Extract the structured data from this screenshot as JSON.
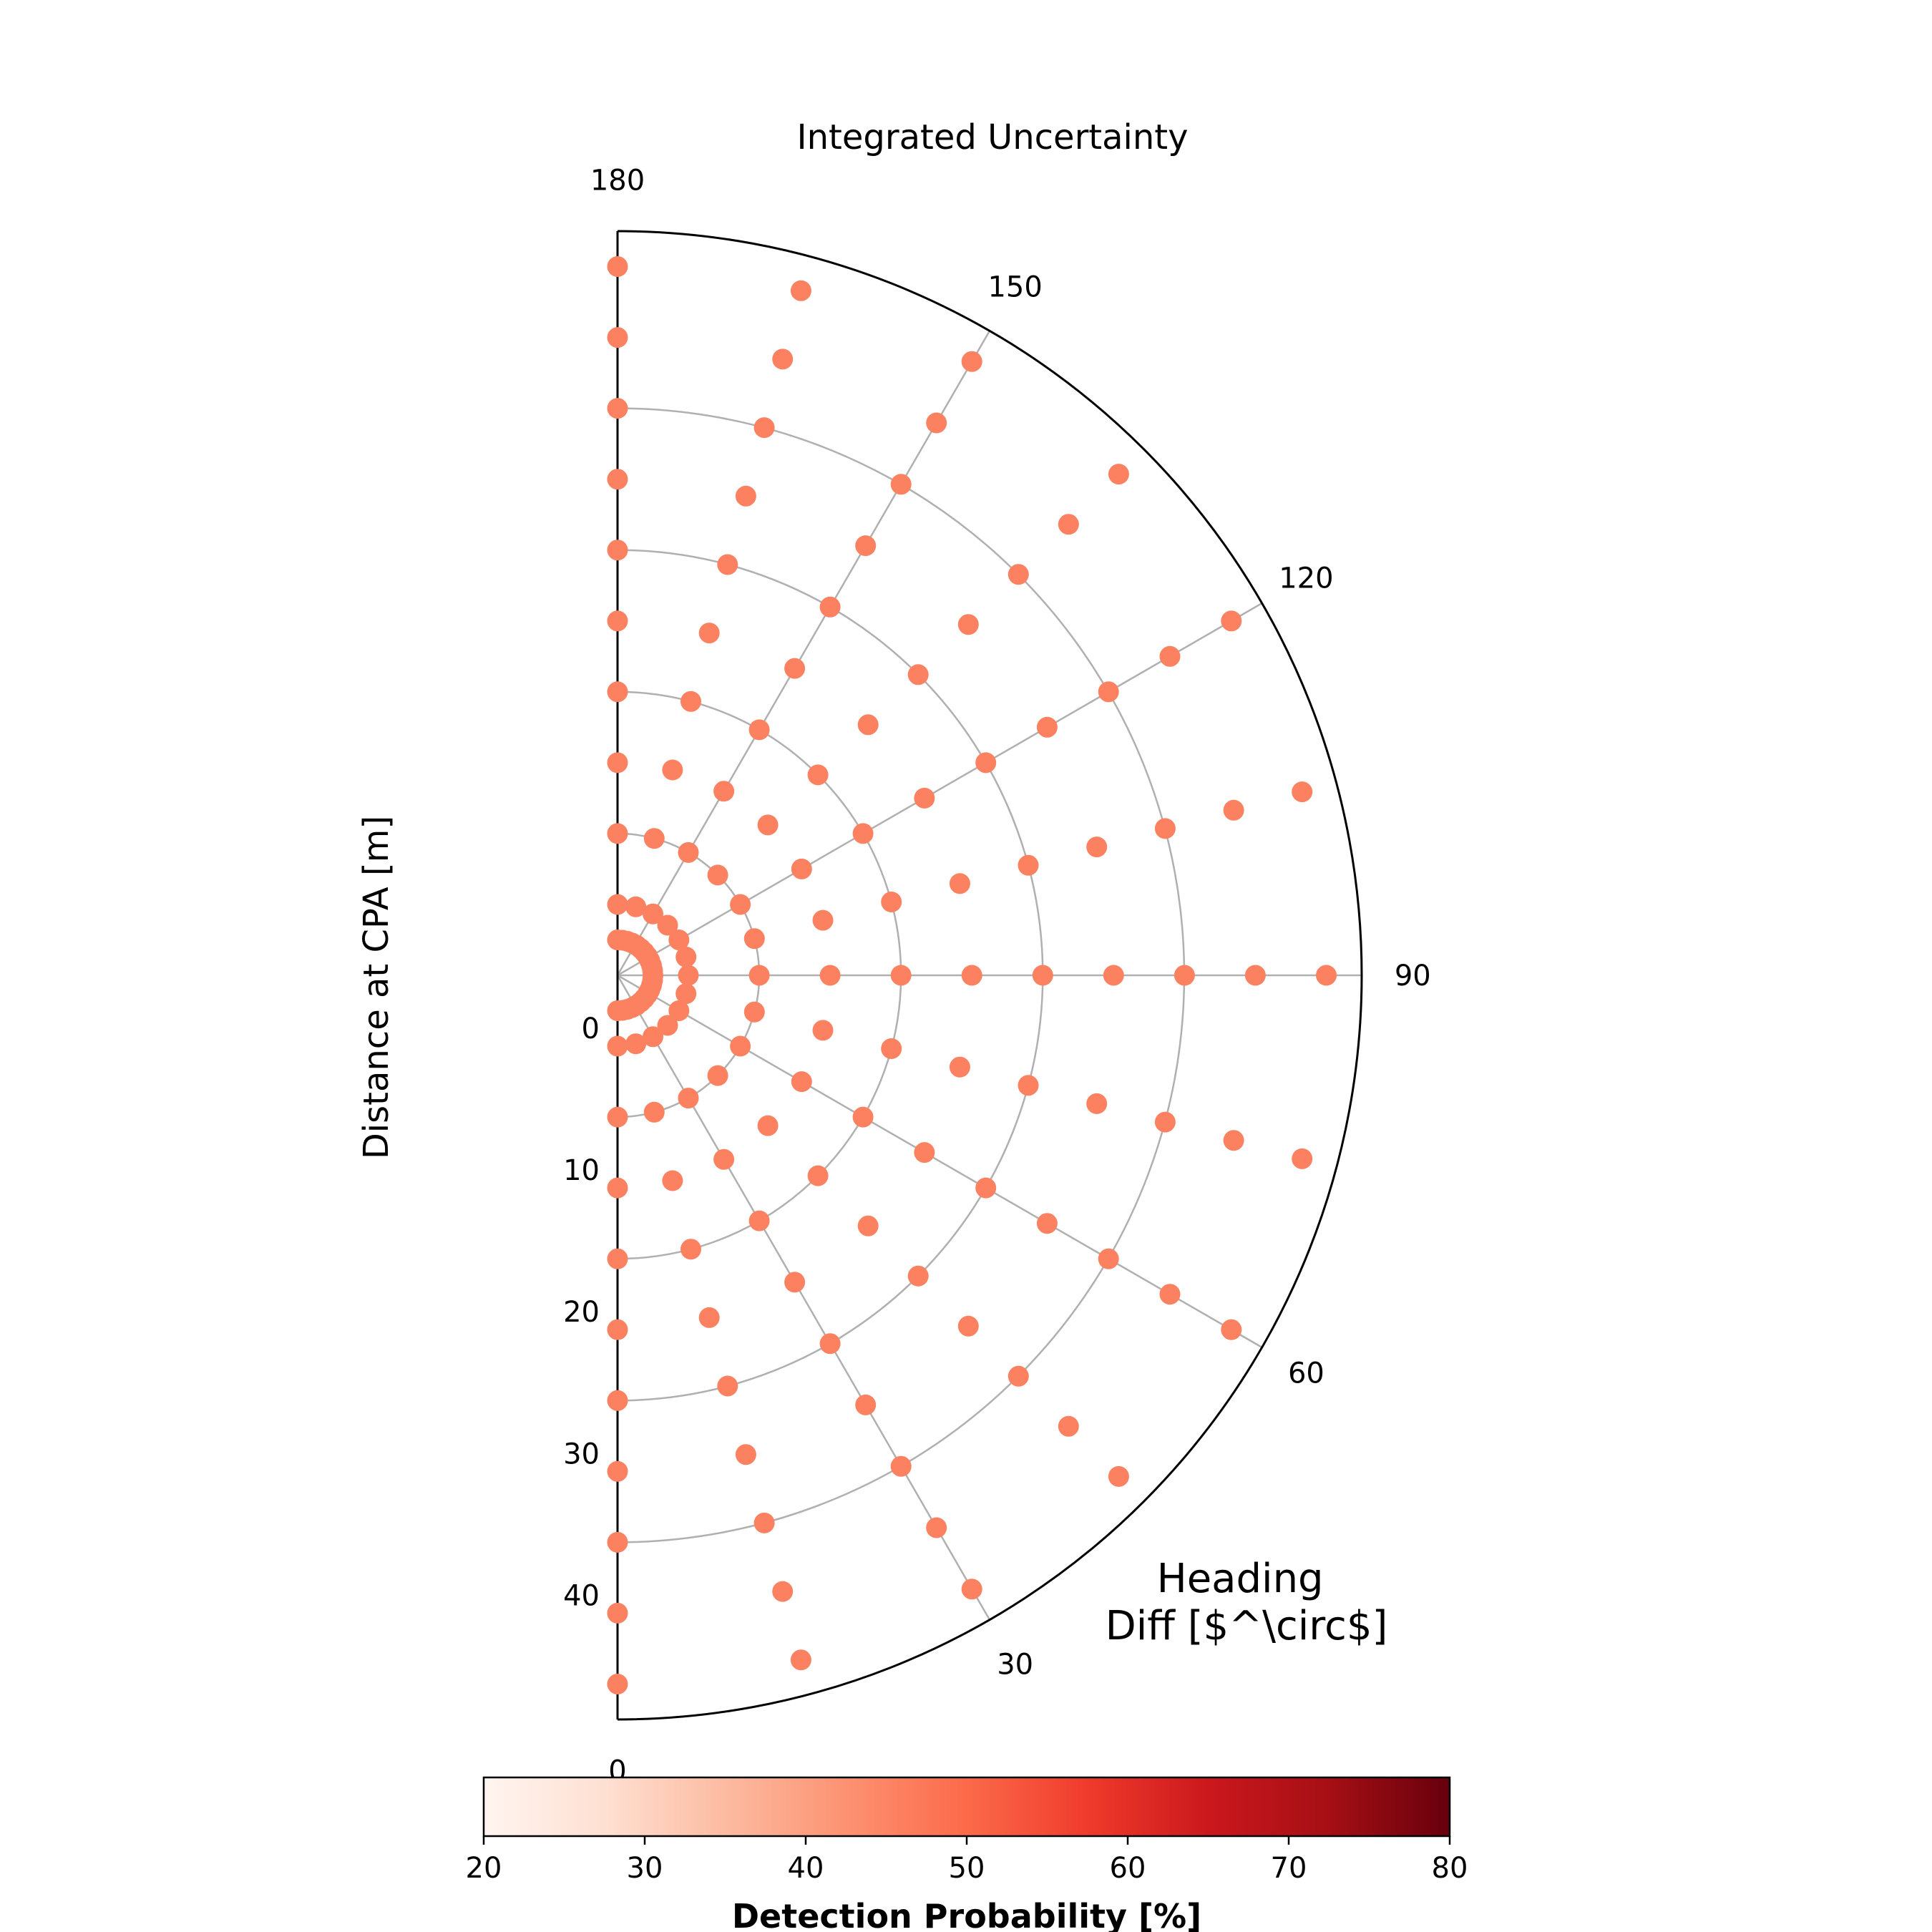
{
  "chart_data": {
    "type": "scatter",
    "subtype": "polar-half (semicircle)",
    "title": "Integrated Uncertainty",
    "ylabel": "Distance at CPA [m]",
    "angle_label": "Heading\nDiff [$^\\circ$]",
    "angle_label_lines": [
      "Heading",
      "Diff [$^\\circ$]"
    ],
    "angle_ticks": [
      0,
      30,
      60,
      90,
      120,
      150,
      180
    ],
    "angle_tick_labels": [
      "0",
      "30",
      "60",
      "90",
      "120",
      "150",
      "180"
    ],
    "radial_range": [
      0,
      52.5
    ],
    "radial_gridlines": [
      10,
      20,
      30,
      40
    ],
    "radial_tick_labels": [
      "0",
      "10",
      "20",
      "30",
      "40"
    ],
    "grid": true,
    "marker_color": "#fb8161",
    "point_value_range_percent": [
      45,
      48
    ],
    "radii": [
      2.5,
      5,
      10,
      15,
      20,
      25,
      30,
      35,
      40,
      45,
      50
    ],
    "angles_by_radius": {
      "2.5": [
        0,
        8.18,
        16.36,
        24.55,
        32.73,
        40.91,
        49.09,
        57.27,
        65.45,
        73.64,
        81.82,
        90,
        98.18,
        106.36,
        114.55,
        122.73,
        130.91,
        139.09,
        147.27,
        155.45,
        163.64,
        171.82,
        180
      ],
      "5": [
        0,
        15,
        30,
        45,
        60,
        75,
        90,
        105,
        120,
        135,
        150,
        165,
        180
      ],
      "10": [
        0,
        15,
        30,
        45,
        60,
        75,
        90,
        105,
        120,
        135,
        150,
        165,
        180
      ],
      "15": [
        0,
        15,
        30,
        45,
        60,
        75,
        90,
        105,
        120,
        135,
        150,
        165,
        180
      ],
      "20": [
        0,
        15,
        30,
        45,
        60,
        75,
        90,
        105,
        120,
        135,
        150,
        165,
        180
      ],
      "25": [
        0,
        15,
        30,
        45,
        60,
        75,
        90,
        105,
        120,
        135,
        150,
        165,
        180
      ],
      "30": [
        0,
        15,
        30,
        45,
        60,
        75,
        90,
        105,
        120,
        135,
        150,
        165,
        180
      ],
      "35": [
        0,
        15,
        30,
        45,
        60,
        75,
        90,
        105,
        120,
        135,
        150,
        165,
        180
      ],
      "40": [
        0,
        15,
        30,
        45,
        60,
        75,
        90,
        105,
        120,
        135,
        150,
        165,
        180
      ],
      "45": [
        0,
        15,
        30,
        45,
        60,
        75,
        90,
        105,
        120,
        135,
        150,
        165,
        180
      ],
      "50": [
        0,
        15,
        30,
        45,
        60,
        75,
        90,
        105,
        120,
        135,
        150,
        165,
        180
      ]
    },
    "colorbar": {
      "label": "Detection Probability [%]",
      "range": [
        20,
        80
      ],
      "ticks": [
        20,
        30,
        40,
        50,
        60,
        70,
        80
      ],
      "tick_labels": [
        "20",
        "30",
        "40",
        "50",
        "60",
        "70",
        "80"
      ],
      "colormap": "Reds",
      "colormap_stops": [
        "#fff5f0",
        "#fee0d2",
        "#fcbba1",
        "#fc9272",
        "#fb6a4a",
        "#ef3b2c",
        "#cb181d",
        "#a50f15",
        "#67000d"
      ]
    }
  }
}
